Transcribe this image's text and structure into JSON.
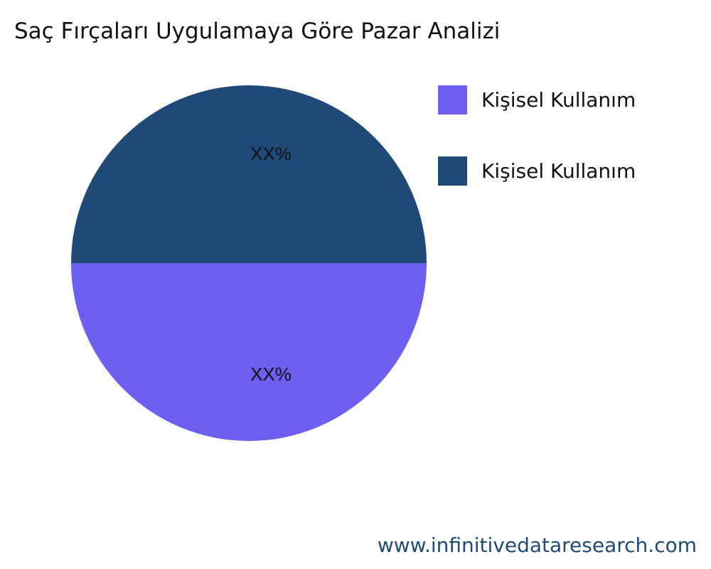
{
  "chart_data": {
    "type": "pie",
    "title": "Saç Fırçaları Uygulamaya Göre Pazar Analizi",
    "slices": [
      {
        "label": "Kişisel Kullanım",
        "value": 50,
        "data_label": "XX%",
        "color": "#6c5ff2"
      },
      {
        "label": "Kişisel Kullanım",
        "value": 50,
        "data_label": "XX%",
        "color": "#1f4a78"
      }
    ],
    "legend_position": "top-right"
  },
  "watermark": "www.infinitivedataresearch.com"
}
